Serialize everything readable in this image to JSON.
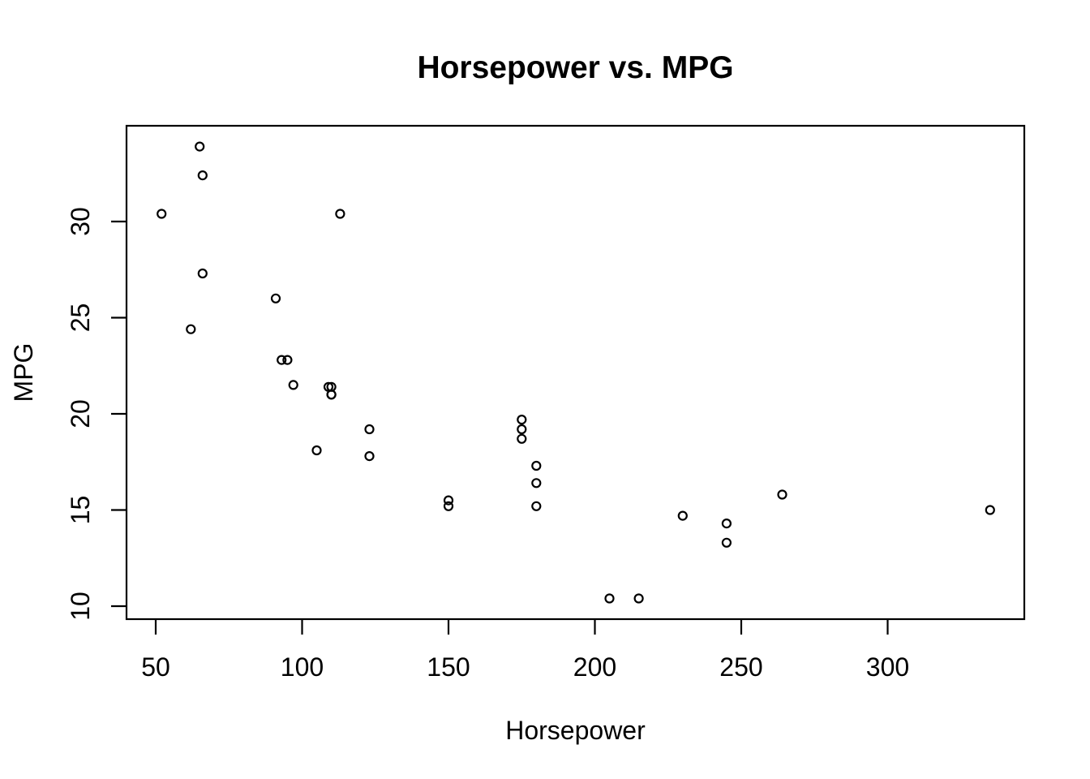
{
  "chart_data": {
    "type": "scatter",
    "title": "Horsepower vs. MPG",
    "xlabel": "Horsepower",
    "ylabel": "MPG",
    "x_ticks": [
      50,
      100,
      150,
      200,
      250,
      300
    ],
    "y_ticks": [
      10,
      15,
      20,
      25,
      30
    ],
    "xlim": [
      40.7,
      346.3
    ],
    "ylim": [
      9.5,
      34.8
    ],
    "grid": false,
    "legend": "none",
    "marker": "open-circle",
    "marker_color": "#000000",
    "background_color": "#ffffff",
    "points": [
      [
        110,
        21.0
      ],
      [
        110,
        21.0
      ],
      [
        93,
        22.8
      ],
      [
        110,
        21.4
      ],
      [
        175,
        18.7
      ],
      [
        105,
        18.1
      ],
      [
        245,
        14.3
      ],
      [
        62,
        24.4
      ],
      [
        95,
        22.8
      ],
      [
        123,
        19.2
      ],
      [
        123,
        17.8
      ],
      [
        180,
        16.4
      ],
      [
        180,
        17.3
      ],
      [
        180,
        15.2
      ],
      [
        205,
        10.4
      ],
      [
        215,
        10.4
      ],
      [
        230,
        14.7
      ],
      [
        66,
        32.4
      ],
      [
        52,
        30.4
      ],
      [
        65,
        33.9
      ],
      [
        97,
        21.5
      ],
      [
        150,
        15.5
      ],
      [
        150,
        15.2
      ],
      [
        245,
        13.3
      ],
      [
        175,
        19.2
      ],
      [
        66,
        27.3
      ],
      [
        91,
        26.0
      ],
      [
        113,
        30.4
      ],
      [
        264,
        15.8
      ],
      [
        175,
        19.7
      ],
      [
        335,
        15.0
      ],
      [
        109,
        21.4
      ]
    ]
  }
}
